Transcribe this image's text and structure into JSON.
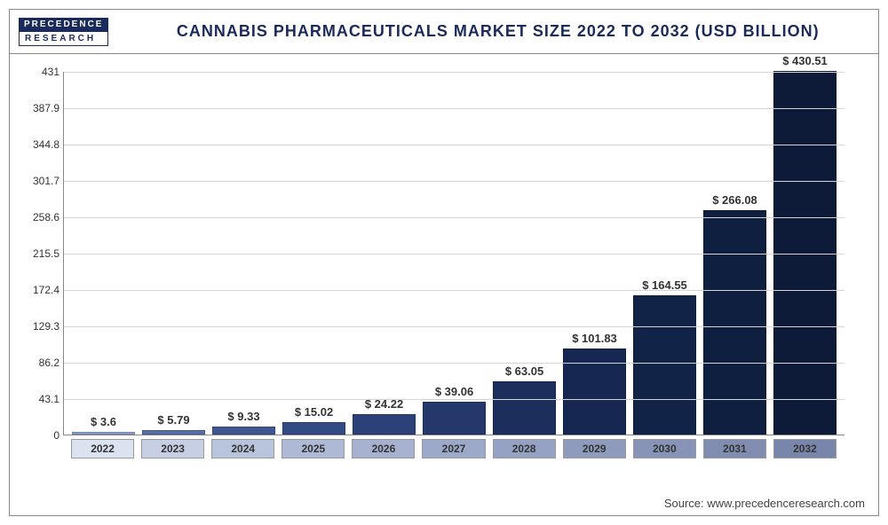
{
  "logo": {
    "line1": "PRECEDENCE",
    "line2": "RESEARCH"
  },
  "chart": {
    "type": "bar",
    "title": "CANNABIS PHARMACEUTICALS MARKET SIZE 2022 TO 2032 (USD BILLION)",
    "categories": [
      "2022",
      "2023",
      "2024",
      "2025",
      "2026",
      "2027",
      "2028",
      "2029",
      "2030",
      "2031",
      "2032"
    ],
    "values": [
      3.6,
      5.79,
      9.33,
      15.02,
      24.22,
      39.06,
      63.05,
      101.83,
      164.55,
      266.08,
      430.51
    ],
    "value_labels": [
      "$ 3.6",
      "$ 5.79",
      "$ 9.33",
      "$ 15.02",
      "$ 24.22",
      "$ 39.06",
      "$ 63.05",
      "$ 101.83",
      "$ 164.55",
      "$ 266.08",
      "$ 430.51"
    ],
    "bar_colors": [
      "#8fa3d4",
      "#5a6fa8",
      "#3f5692",
      "#334a85",
      "#2b4178",
      "#24386b",
      "#1b2e5c",
      "#162851",
      "#122348",
      "#0f1f40",
      "#0d1b38"
    ],
    "ylim": [
      0,
      431
    ],
    "ytick_step": 43.1,
    "yticks": [
      "0",
      "43.1",
      "86.2",
      "129.3",
      "172.4",
      "215.5",
      "258.6",
      "301.7",
      "344.8",
      "387.9",
      "431"
    ],
    "grid_color": "#d5d5d5",
    "background_color": "#ffffff",
    "xcat_bg_colors": [
      "#dbe2f0",
      "#c6cfe4",
      "#b8c3dc",
      "#aeb9d5",
      "#a5b1cf",
      "#9da9c9",
      "#95a2c3",
      "#8e9bbd",
      "#8794b7",
      "#808db1",
      "#7986ab"
    ],
    "title_fontsize": 18,
    "label_fontsize": 13
  },
  "source": "Source: www.precedenceresearch.com"
}
